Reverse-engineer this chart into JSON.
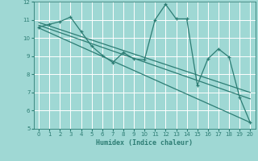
{
  "xlabel": "Humidex (Indice chaleur)",
  "bg_color": "#9fd8d4",
  "line_color": "#2d7d74",
  "grid_color": "#ffffff",
  "xlim": [
    -0.5,
    20.5
  ],
  "ylim": [
    5,
    12
  ],
  "yticks": [
    5,
    6,
    7,
    8,
    9,
    10,
    11,
    12
  ],
  "xticks": [
    0,
    1,
    2,
    3,
    4,
    5,
    6,
    7,
    8,
    9,
    10,
    11,
    12,
    13,
    14,
    15,
    16,
    17,
    18,
    19,
    20
  ],
  "series1_x": [
    0,
    1,
    2,
    3,
    4,
    5,
    6,
    7,
    8,
    9,
    10,
    11,
    12,
    13,
    14,
    15,
    16,
    17,
    18,
    19,
    20
  ],
  "series1_y": [
    10.6,
    10.75,
    10.9,
    11.15,
    10.35,
    9.55,
    9.05,
    8.65,
    9.2,
    8.85,
    8.8,
    11.0,
    11.85,
    11.05,
    11.05,
    7.4,
    8.85,
    9.4,
    8.95,
    6.75,
    5.35
  ],
  "trend1_x": [
    0,
    20
  ],
  "trend1_y": [
    10.85,
    7.0
  ],
  "trend2_x": [
    0,
    20
  ],
  "trend2_y": [
    10.7,
    6.65
  ],
  "trend3_x": [
    0,
    20
  ],
  "trend3_y": [
    10.55,
    5.35
  ]
}
